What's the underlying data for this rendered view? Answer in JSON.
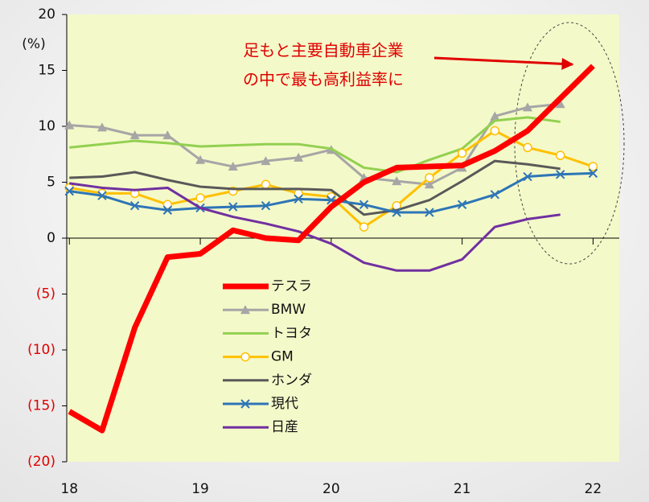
{
  "chart_data": {
    "type": "line",
    "ylabel": "(%)",
    "annotation": [
      "足もと主要自動車企業",
      "の中で最も高利益率に"
    ],
    "x": [
      18,
      18.25,
      18.5,
      18.75,
      19,
      19.25,
      19.5,
      19.75,
      20,
      20.25,
      20.5,
      20.75,
      21,
      21.25,
      21.5,
      21.75,
      22
    ],
    "series": [
      {
        "name": "テスラ",
        "color": "#ff0000",
        "width": 7,
        "marker": "none",
        "values": [
          -15.5,
          -17.2,
          -8,
          -1.7,
          -1.4,
          0.7,
          0,
          -0.2,
          2.8,
          5,
          6.3,
          6.4,
          6.5,
          7.8,
          9.6,
          12.5,
          15.4
        ]
      },
      {
        "name": "BMW",
        "color": "#a6a6a6",
        "width": 3,
        "marker": "triangle",
        "values": [
          10.1,
          9.9,
          9.2,
          9.2,
          7,
          6.4,
          6.9,
          7.2,
          7.9,
          5.4,
          5.1,
          4.8,
          6.3,
          10.9,
          11.7,
          12,
          null
        ]
      },
      {
        "name": "トヨタ",
        "color": "#92d050",
        "width": 3,
        "marker": "none",
        "values": [
          8.1,
          8.4,
          8.7,
          8.5,
          8.2,
          8.3,
          8.4,
          8.4,
          8,
          6.3,
          5.9,
          7,
          8,
          10.5,
          10.8,
          10.4,
          null
        ]
      },
      {
        "name": "GM",
        "color": "#ffc000",
        "width": 3,
        "marker": "circle",
        "values": [
          4.5,
          4,
          4,
          3,
          3.6,
          4.2,
          4.8,
          4,
          3.7,
          1,
          2.9,
          5.4,
          7.6,
          9.6,
          8.1,
          7.4,
          6.4
        ]
      },
      {
        "name": "ホンダ",
        "color": "#595959",
        "width": 3,
        "marker": "none",
        "values": [
          5.4,
          5.5,
          5.9,
          5.2,
          4.6,
          4.4,
          4.4,
          4.4,
          4.3,
          2.1,
          2.5,
          3.4,
          5.1,
          6.9,
          6.6,
          6.2,
          null
        ]
      },
      {
        "name": "現代",
        "color": "#2e75b6",
        "width": 3,
        "marker": "x",
        "values": [
          4.2,
          3.8,
          2.9,
          2.5,
          2.7,
          2.8,
          2.9,
          3.5,
          3.4,
          3,
          2.3,
          2.3,
          3,
          3.9,
          5.5,
          5.7,
          5.8
        ]
      },
      {
        "name": "日産",
        "color": "#7030a0",
        "width": 3,
        "marker": "none",
        "values": [
          4.9,
          4.5,
          4.3,
          4.5,
          2.7,
          1.9,
          1.3,
          0.6,
          -0.5,
          -2.2,
          -2.9,
          -2.9,
          -1.9,
          1,
          1.7,
          2.1,
          null
        ]
      }
    ],
    "xlim": [
      17.98,
      22.2
    ],
    "xticks": [
      18,
      19,
      20,
      21,
      22
    ],
    "ylim": [
      -20,
      20
    ],
    "yticks": [
      {
        "value": -20,
        "label": "(20)"
      },
      {
        "value": -15,
        "label": "(15)"
      },
      {
        "value": -10,
        "label": "(10)"
      },
      {
        "value": -5,
        "label": "(5)"
      },
      0,
      5,
      10,
      15,
      20
    ],
    "negative_tick_color": "#e00000"
  }
}
